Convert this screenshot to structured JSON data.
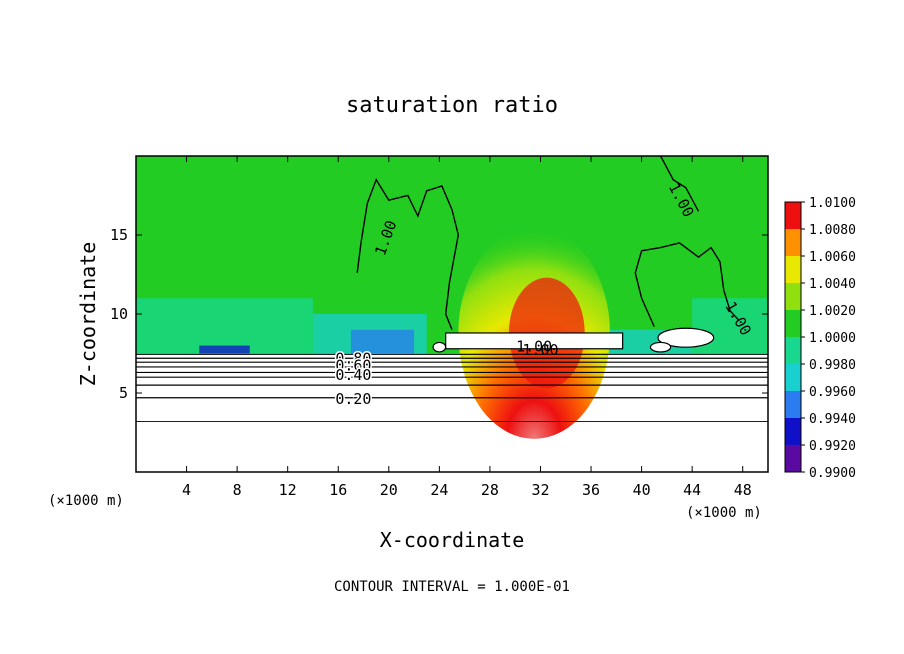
{
  "chart_data": {
    "type": "heatmap",
    "title": "saturation ratio",
    "xlabel": "X-coordinate",
    "ylabel": "Z-coordinate",
    "x_unit": "(×1000 m)",
    "xlim": [
      0,
      50
    ],
    "ylim": [
      0,
      20
    ],
    "x_ticks": [
      "4",
      "8",
      "12",
      "16",
      "20",
      "24",
      "28",
      "32",
      "36",
      "40",
      "44",
      "48"
    ],
    "y_ticks": [
      "5",
      "10",
      "15"
    ],
    "colorbar": {
      "ticks": [
        "0.9900",
        "0.9920",
        "0.9940",
        "0.9960",
        "0.9980",
        "1.0000",
        "1.0020",
        "1.0040",
        "1.0060",
        "1.0080",
        "1.0100"
      ],
      "colors": [
        "#5a0aa0",
        "#1010c8",
        "#2a7cf0",
        "#18d0d0",
        "#18d890",
        "#22cc22",
        "#90e010",
        "#e8e800",
        "#ff9000",
        "#ee1010",
        "#f07878"
      ]
    },
    "contour_labels": [
      "1.00",
      "1.00",
      "1.00",
      "1.00",
      "1.00",
      "0.80",
      "0.60",
      "0.40",
      "0.20"
    ],
    "contour_lines_z": [
      3.2,
      4.7,
      5.5,
      6.0,
      6.3,
      6.65,
      6.95,
      7.2,
      7.45
    ],
    "field_bands": [
      {
        "x0": 0,
        "x1": 50,
        "z0": 7.5,
        "z1": 20,
        "value": 1.0
      },
      {
        "x0": 0,
        "x1": 14,
        "z0": 7.5,
        "z1": 11,
        "value": 0.997
      },
      {
        "x0": 14,
        "x1": 23,
        "z0": 7.5,
        "z1": 10,
        "value": 0.995
      },
      {
        "x0": 17,
        "x1": 22,
        "z0": 7.5,
        "z1": 9,
        "value": 0.993
      },
      {
        "x0": 5,
        "x1": 9,
        "z0": 7.5,
        "z1": 8,
        "value": 0.992
      },
      {
        "x0": 37,
        "x1": 44,
        "z0": 7.5,
        "z1": 9,
        "value": 0.996
      },
      {
        "x0": 44,
        "x1": 50,
        "z0": 7.5,
        "z1": 11,
        "value": 0.997
      }
    ],
    "plume": {
      "x_center": 31.5,
      "z_base": 8.8,
      "z_top": 15.5,
      "half_width": 6,
      "peak_value": 1.009
    },
    "cloud_box": {
      "x0": 24.5,
      "x1": 38.5,
      "z0": 7.8,
      "z1": 8.8,
      "value": 1.0
    },
    "footer": "CONTOUR INTERVAL = 1.000E-01"
  }
}
